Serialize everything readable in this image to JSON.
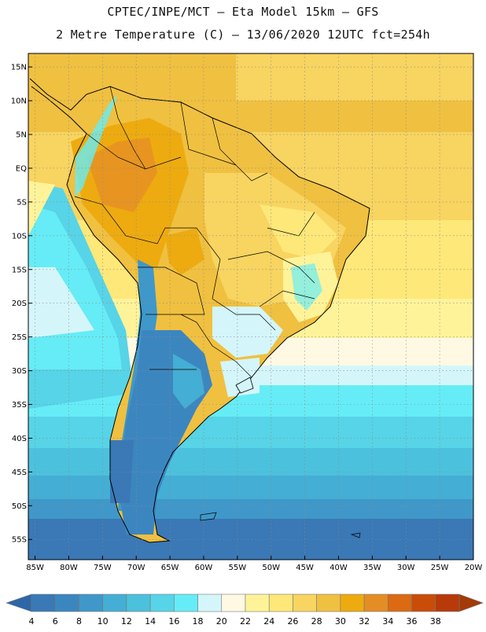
{
  "header": {
    "line1": "CPTEC/INPE/MCT –  Eta Model 15km – GFS",
    "line2": "2 Metre Temperature (C) – 13/06/2020 12UTC fct=254h"
  },
  "map": {
    "lon_range": [
      -86,
      -20
    ],
    "lat_range": [
      -58,
      17
    ],
    "lat_ticks": [
      {
        "value": 15,
        "label": "15N"
      },
      {
        "value": 10,
        "label": "10N"
      },
      {
        "value": 5,
        "label": "5N"
      },
      {
        "value": 0,
        "label": "EQ"
      },
      {
        "value": -5,
        "label": "5S"
      },
      {
        "value": -10,
        "label": "10S"
      },
      {
        "value": -15,
        "label": "15S"
      },
      {
        "value": -20,
        "label": "20S"
      },
      {
        "value": -25,
        "label": "25S"
      },
      {
        "value": -30,
        "label": "30S"
      },
      {
        "value": -35,
        "label": "35S"
      },
      {
        "value": -40,
        "label": "40S"
      },
      {
        "value": -45,
        "label": "45S"
      },
      {
        "value": -50,
        "label": "50S"
      },
      {
        "value": -55,
        "label": "55S"
      }
    ],
    "lon_ticks": [
      {
        "value": -85,
        "label": "85W"
      },
      {
        "value": -80,
        "label": "80W"
      },
      {
        "value": -75,
        "label": "75W"
      },
      {
        "value": -70,
        "label": "70W"
      },
      {
        "value": -65,
        "label": "65W"
      },
      {
        "value": -60,
        "label": "60W"
      },
      {
        "value": -55,
        "label": "55W"
      },
      {
        "value": -50,
        "label": "50W"
      },
      {
        "value": -45,
        "label": "45W"
      },
      {
        "value": -40,
        "label": "40W"
      },
      {
        "value": -35,
        "label": "35W"
      },
      {
        "value": -30,
        "label": "30W"
      },
      {
        "value": -25,
        "label": "25W"
      },
      {
        "value": -20,
        "label": "20W"
      }
    ]
  },
  "colorbar": {
    "labels": [
      "4",
      "6",
      "8",
      "10",
      "12",
      "14",
      "16",
      "18",
      "20",
      "22",
      "24",
      "26",
      "28",
      "30",
      "32",
      "34",
      "36",
      "38"
    ],
    "colors": [
      "#3a78b6",
      "#3c86c0",
      "#3f98c9",
      "#44aed4",
      "#4cc1de",
      "#57d4e7",
      "#66ecf6",
      "#d4f6fb",
      "#fff9e3",
      "#fff39a",
      "#fde879",
      "#f8d460",
      "#f0c040",
      "#edab10",
      "#e48d25",
      "#db6a12",
      "#c94c08",
      "#b8390a"
    ],
    "left_arrow_color": "#2e67a8",
    "right_arrow_color": "#a43a08"
  }
}
